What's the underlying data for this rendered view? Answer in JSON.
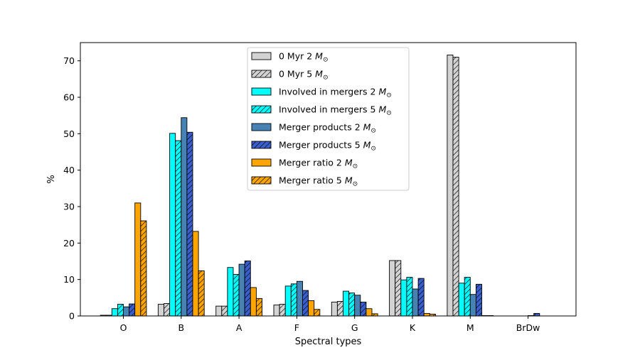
{
  "chart_data": {
    "type": "bar",
    "title": "",
    "xlabel": "Spectral types",
    "ylabel": "%",
    "ylim": [
      0,
      75
    ],
    "yticks": [
      0,
      10,
      20,
      30,
      40,
      50,
      60,
      70
    ],
    "categories": [
      "O",
      "B",
      "A",
      "F",
      "G",
      "K",
      "M",
      "BrDw"
    ],
    "legend_position": "top-center",
    "grid": false,
    "series": [
      {
        "name": "0 Myr 2 M⊙",
        "label_main": "0 Myr 2 ",
        "label_mass": "M",
        "label_sun": "⊙",
        "color": "#d3d3d3",
        "hatch": false,
        "values": [
          0.2,
          3.2,
          2.7,
          3.0,
          3.8,
          15.2,
          71.6,
          0.0
        ]
      },
      {
        "name": "0 Myr 5 M⊙",
        "label_main": "0 Myr 5 ",
        "label_mass": "M",
        "label_sun": "⊙",
        "color": "#d3d3d3",
        "hatch": true,
        "values": [
          0.2,
          3.4,
          2.7,
          3.2,
          4.0,
          15.2,
          71.0,
          0.0
        ]
      },
      {
        "name": "Involved in mergers 2 M⊙",
        "label_main": "Involved in mergers 2 ",
        "label_mass": "M",
        "label_sun": "⊙",
        "color": "#00ffff",
        "hatch": false,
        "values": [
          2.0,
          50.1,
          13.3,
          8.2,
          6.8,
          9.9,
          9.0,
          0.0
        ]
      },
      {
        "name": "Involved in mergers 5 M⊙",
        "label_main": "Involved in mergers 5 ",
        "label_mass": "M",
        "label_sun": "⊙",
        "color": "#00ffff",
        "hatch": true,
        "values": [
          3.2,
          48.1,
          11.4,
          8.8,
          6.3,
          10.6,
          10.6,
          0.0
        ]
      },
      {
        "name": "Merger products 2 M⊙",
        "label_main": "Merger products 2 ",
        "label_mass": "M",
        "label_sun": "⊙",
        "color": "#4682b4",
        "hatch": false,
        "values": [
          2.5,
          54.4,
          14.2,
          9.5,
          5.7,
          7.4,
          5.9,
          0.1
        ]
      },
      {
        "name": "Merger products 5 M⊙",
        "label_main": "Merger products 5 ",
        "label_mass": "M",
        "label_sun": "⊙",
        "color": "#3a5fcd",
        "hatch": true,
        "values": [
          3.3,
          50.4,
          15.1,
          7.0,
          3.8,
          10.3,
          8.7,
          0.7
        ]
      },
      {
        "name": "Merger ratio 2 M⊙",
        "label_main": "Merger ratio 2 ",
        "label_mass": "M",
        "label_sun": "⊙",
        "color": "#ffa500",
        "hatch": false,
        "values": [
          31.0,
          23.2,
          7.8,
          4.2,
          2.0,
          0.7,
          0.1,
          0.0
        ]
      },
      {
        "name": "Merger ratio 5 M⊙",
        "label_main": "Merger ratio 5 ",
        "label_mass": "M",
        "label_sun": "⊙",
        "color": "#ffa500",
        "hatch": true,
        "values": [
          26.1,
          12.4,
          4.8,
          1.8,
          0.6,
          0.5,
          0.1,
          0.0
        ]
      }
    ]
  }
}
